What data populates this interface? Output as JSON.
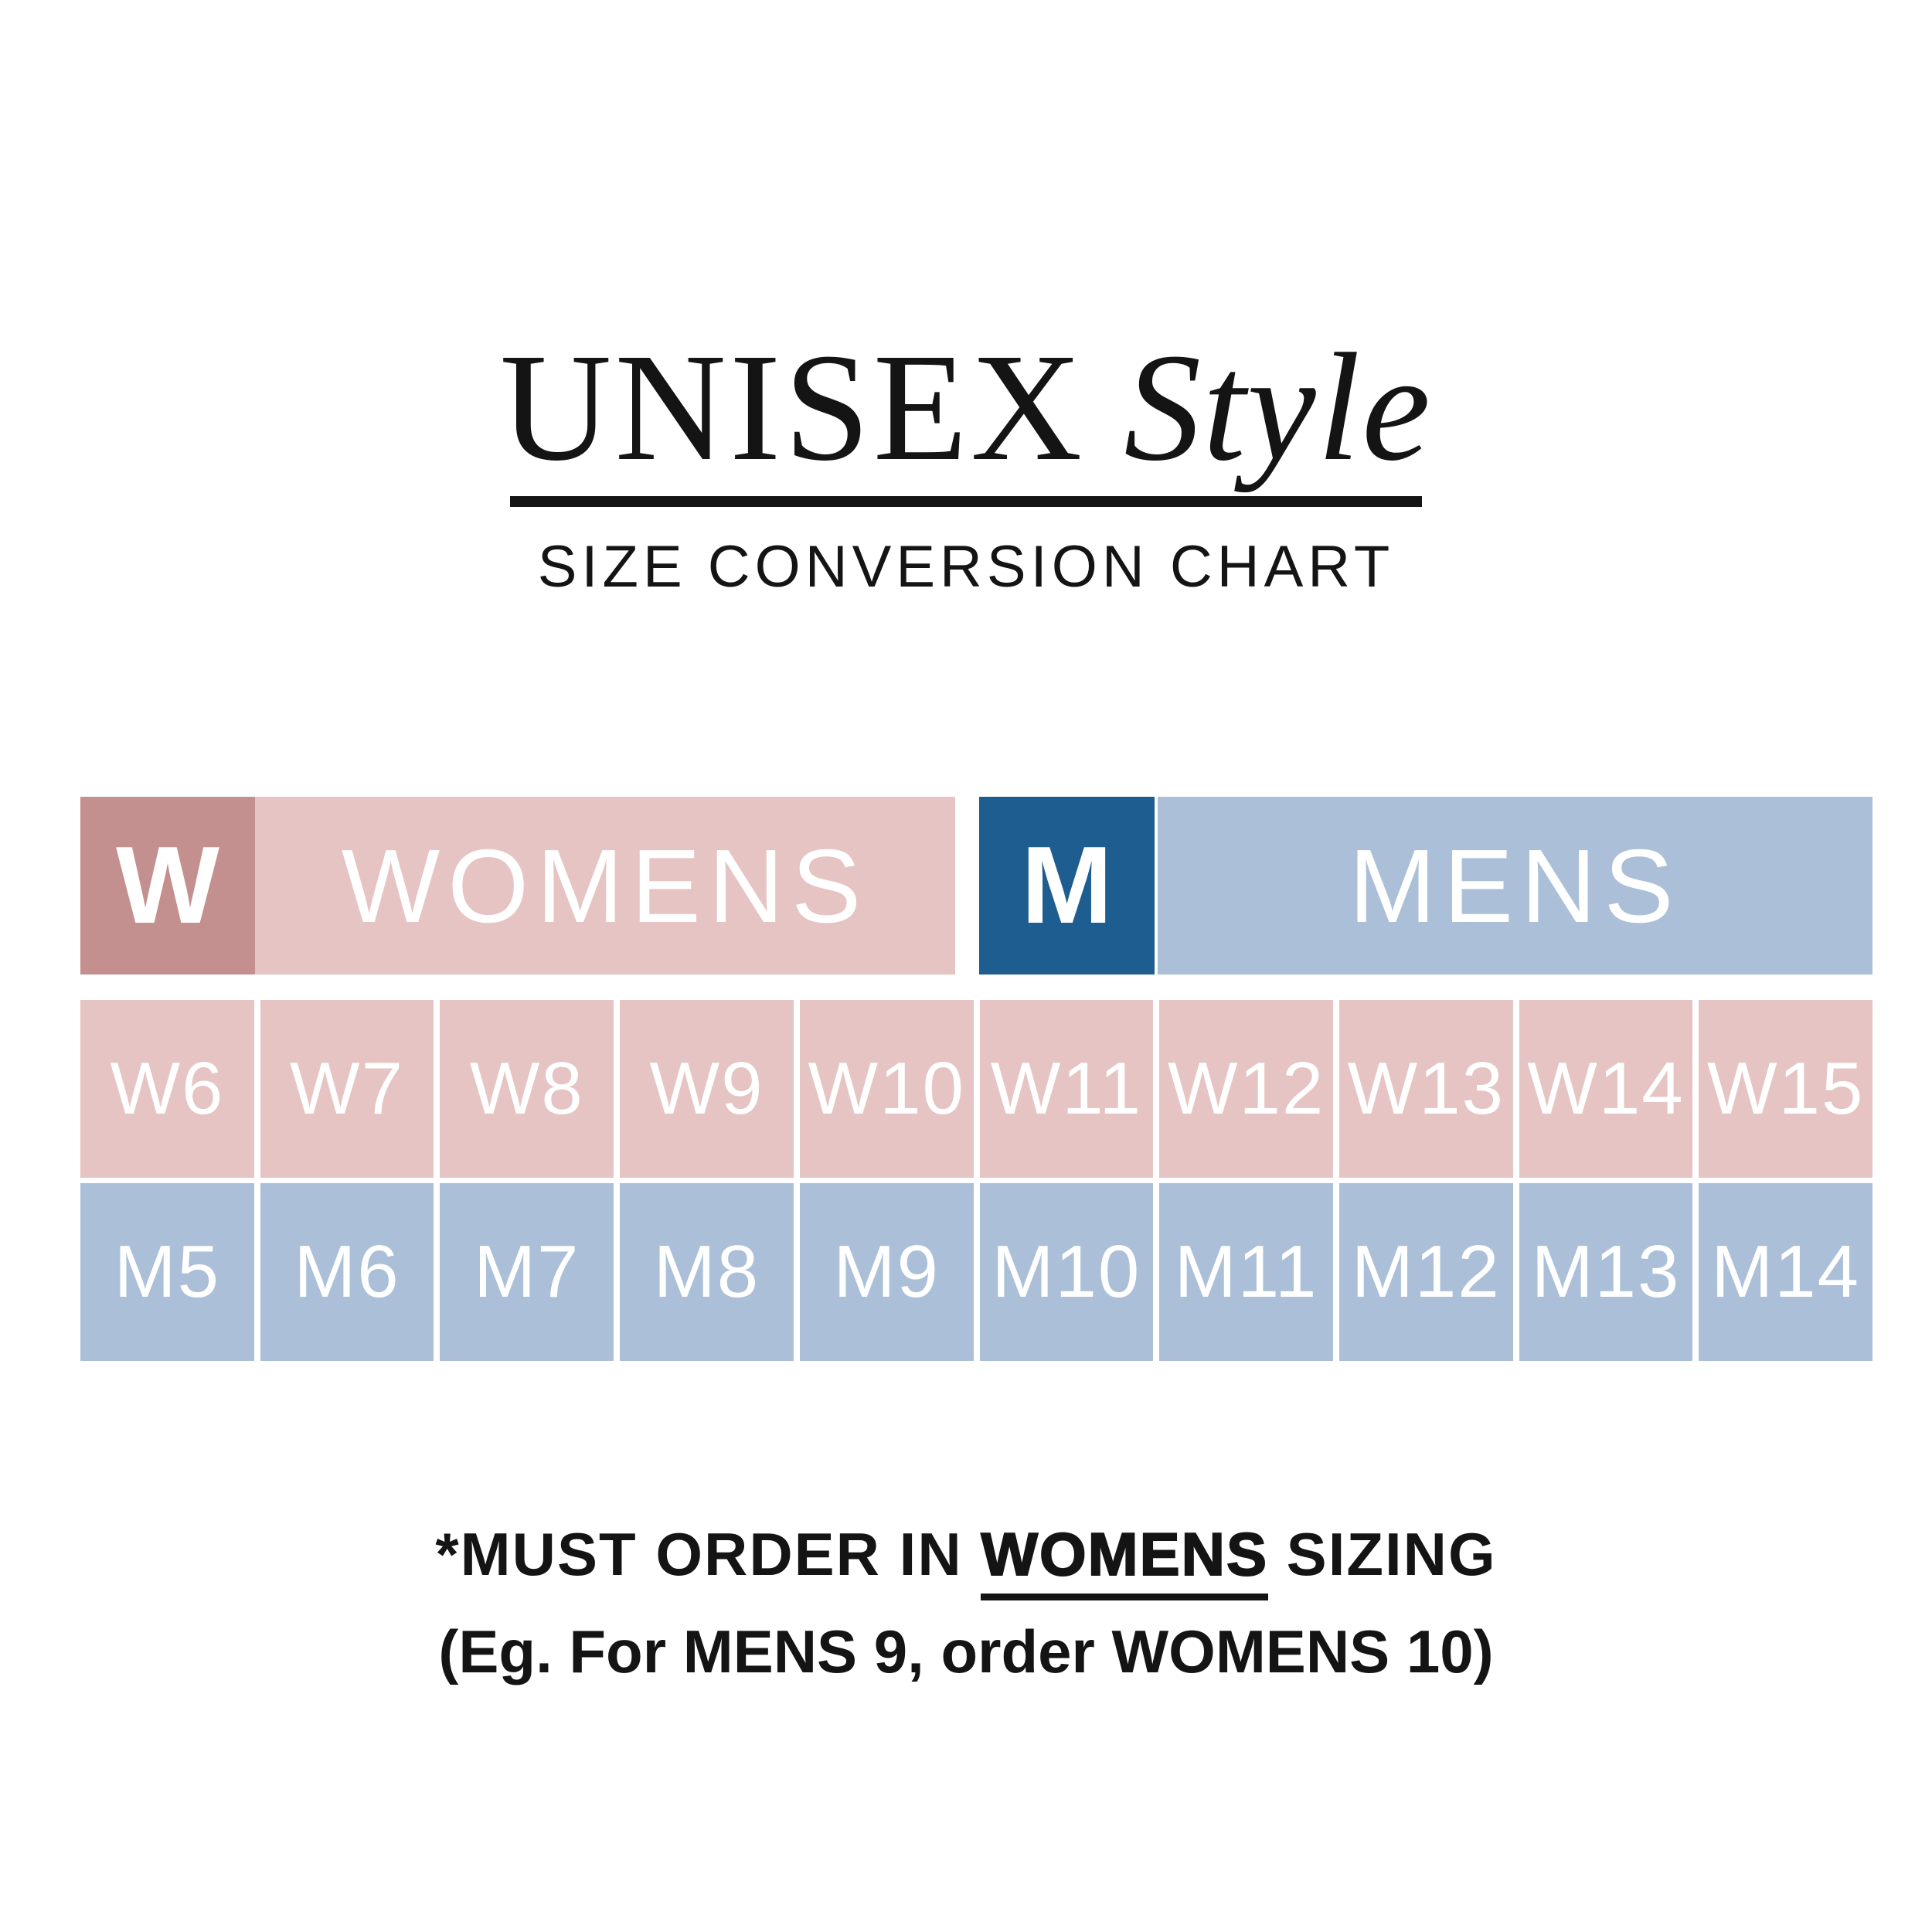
{
  "title": {
    "word": "UNISEX",
    "script_word": "Style",
    "subtitle": "SIZE CONVERSION CHART"
  },
  "legend": {
    "womens": {
      "abbr": "W",
      "label": "WOMENS"
    },
    "mens": {
      "abbr": "M",
      "label": "MENS"
    }
  },
  "sizes": {
    "womens": [
      "W6",
      "W7",
      "W8",
      "W9",
      "W10",
      "W11",
      "W12",
      "W13",
      "W14",
      "W15"
    ],
    "mens": [
      "M5",
      "M6",
      "M7",
      "M8",
      "M9",
      "M10",
      "M11",
      "M12",
      "M13",
      "M14"
    ]
  },
  "footnote": {
    "prefix": "*MUST ORDER IN ",
    "emphasis": "WOMENS",
    "suffix": " SIZING",
    "example": "(Eg. For MENS 9, order WOMENS 10)"
  },
  "colors": {
    "womens_dark": "#c4908f",
    "womens_light": "#e6c4c3",
    "mens_dark": "#1d5d90",
    "mens_light": "#abc0d8",
    "text": "#141414",
    "cell_text": "#ffffff",
    "background": "#ffffff"
  },
  "chart_data": {
    "type": "table",
    "title": "UNISEX Style",
    "subtitle": "SIZE CONVERSION CHART",
    "row_headers": [
      "WOMENS",
      "MENS"
    ],
    "rows": [
      [
        "W6",
        "W7",
        "W8",
        "W9",
        "W10",
        "W11",
        "W12",
        "W13",
        "W14",
        "W15"
      ],
      [
        "M5",
        "M6",
        "M7",
        "M8",
        "M9",
        "M10",
        "M11",
        "M12",
        "M13",
        "M14"
      ]
    ],
    "pairs": [
      [
        "W6",
        "M5"
      ],
      [
        "W7",
        "M6"
      ],
      [
        "W8",
        "M7"
      ],
      [
        "W9",
        "M8"
      ],
      [
        "W10",
        "M9"
      ],
      [
        "W11",
        "M10"
      ],
      [
        "W12",
        "M11"
      ],
      [
        "W13",
        "M12"
      ],
      [
        "W14",
        "M13"
      ],
      [
        "W15",
        "M14"
      ]
    ],
    "notes": [
      "*MUST ORDER IN WOMENS SIZING",
      "(Eg. For MENS 9, order WOMENS 10)"
    ]
  }
}
